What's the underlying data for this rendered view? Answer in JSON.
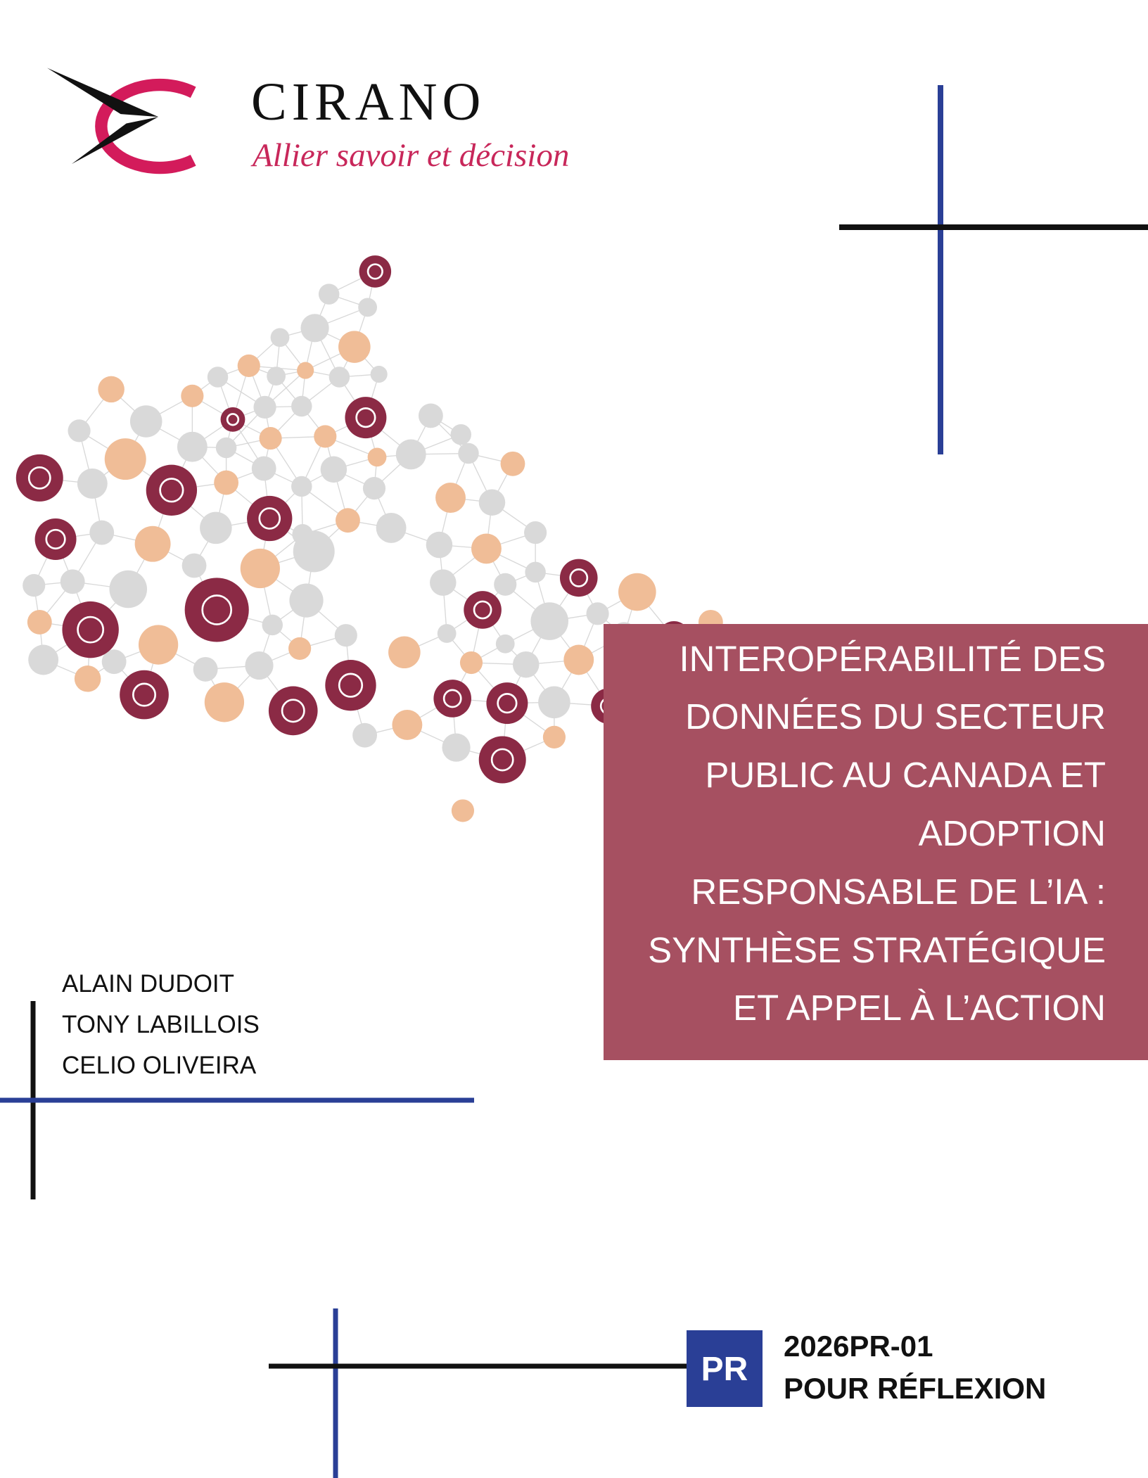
{
  "logo": {
    "name": "CIRANO",
    "tagline": "Allier savoir et décision"
  },
  "title": {
    "lines": [
      "INTEROPÉRABILITÉ DES",
      "DONNÉES DU SECTEUR",
      "PUBLIC AU CANADA ET",
      "ADOPTION",
      "RESPONSABLE DE L’IA :",
      "SYNTHÈSE STRATÉGIQUE",
      "ET APPEL À L’ACTION"
    ]
  },
  "authors": [
    "ALAIN DUDOIT",
    "TONY LABILLOIS",
    "CELIO OLIVEIRA"
  ],
  "footer": {
    "badge": "PR",
    "code": "2026PR-01",
    "series": "POUR RÉFLEXION"
  }
}
